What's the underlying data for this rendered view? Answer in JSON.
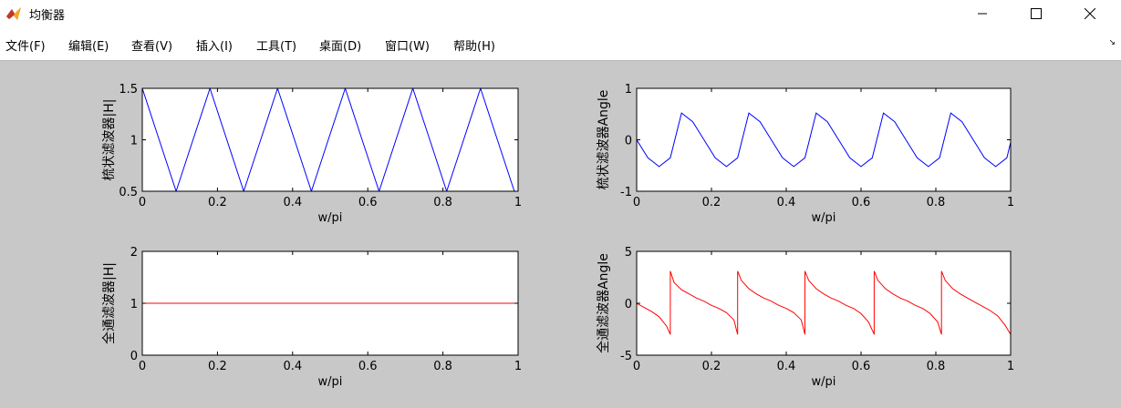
{
  "window": {
    "title": "均衡器",
    "icon": "matlab-icon",
    "controls": [
      "minimize-icon",
      "maximize-icon",
      "close-icon"
    ]
  },
  "menu": {
    "items": [
      "文件(F)",
      "编辑(E)",
      "查看(V)",
      "插入(I)",
      "工具(T)",
      "桌面(D)",
      "窗口(W)",
      "帮助(H)"
    ],
    "overflow_icon": "toolbar-arrow-icon"
  },
  "colors": {
    "blue_line": "#0000ff",
    "red_line": "#ff0000",
    "figure_bg": "#c8c8c8"
  },
  "chart_data": [
    {
      "type": "line",
      "title": "",
      "xlabel": "w/pi",
      "ylabel": "梳状滤波器|H|",
      "xlim": [
        0,
        1
      ],
      "ylim": [
        0.5,
        1.5
      ],
      "x_ticks": [
        "0",
        "0.2",
        "0.4",
        "0.6",
        "0.8",
        "1"
      ],
      "y_ticks": [
        "0.5",
        "1",
        "1.5"
      ],
      "series": [
        {
          "color": "#0000ff",
          "x": [
            0,
            0.045,
            0.09,
            0.135,
            0.18,
            0.225,
            0.27,
            0.315,
            0.36,
            0.405,
            0.45,
            0.495,
            0.54,
            0.585,
            0.63,
            0.675,
            0.72,
            0.765,
            0.81,
            0.855,
            0.9,
            0.945,
            0.99,
            1.0
          ],
          "y": [
            1.5,
            1.0,
            0.5,
            1.0,
            1.5,
            1.0,
            0.5,
            1.0,
            1.5,
            1.0,
            0.5,
            1.0,
            1.5,
            1.0,
            0.5,
            1.0,
            1.5,
            1.0,
            0.5,
            1.0,
            1.5,
            1.0,
            0.5,
            0.5
          ]
        }
      ]
    },
    {
      "type": "line",
      "title": "",
      "xlabel": "w/pi",
      "ylabel": "梳状滤波器Angle",
      "xlim": [
        0,
        1
      ],
      "ylim": [
        -1,
        1
      ],
      "x_ticks": [
        "0",
        "0.2",
        "0.4",
        "0.6",
        "0.8",
        "1"
      ],
      "y_ticks": [
        "-1",
        "0",
        "1"
      ],
      "series": [
        {
          "color": "#0000ff",
          "x": [
            0,
            0.03,
            0.06,
            0.09,
            0.12,
            0.15,
            0.18,
            0.21,
            0.24,
            0.27,
            0.3,
            0.33,
            0.36,
            0.39,
            0.42,
            0.45,
            0.48,
            0.51,
            0.54,
            0.57,
            0.6,
            0.63,
            0.66,
            0.69,
            0.72,
            0.75,
            0.78,
            0.81,
            0.84,
            0.87,
            0.9,
            0.93,
            0.96,
            0.99,
            1.0
          ],
          "y": [
            0,
            -0.35,
            -0.52,
            -0.35,
            0.52,
            0.35,
            0,
            -0.35,
            -0.52,
            -0.35,
            0.52,
            0.35,
            0,
            -0.35,
            -0.52,
            -0.35,
            0.52,
            0.35,
            0,
            -0.35,
            -0.52,
            -0.35,
            0.52,
            0.35,
            0,
            -0.35,
            -0.52,
            -0.35,
            0.52,
            0.35,
            0,
            -0.35,
            -0.52,
            -0.35,
            -0.05
          ]
        }
      ]
    },
    {
      "type": "line",
      "title": "",
      "xlabel": "w/pi",
      "ylabel": "全通滤波器|H|",
      "xlim": [
        0,
        1
      ],
      "ylim": [
        0,
        2
      ],
      "x_ticks": [
        "0",
        "0.2",
        "0.4",
        "0.6",
        "0.8",
        "1"
      ],
      "y_ticks": [
        "0",
        "1",
        "2"
      ],
      "series": [
        {
          "color": "#ff0000",
          "x": [
            0,
            0.27,
            0.45,
            0.81,
            1.0
          ],
          "y": [
            1,
            1,
            1,
            1,
            1
          ]
        }
      ]
    },
    {
      "type": "line",
      "title": "",
      "xlabel": "w/pi",
      "ylabel": "全通滤波器Angle",
      "xlim": [
        0,
        1
      ],
      "ylim": [
        -5,
        5
      ],
      "x_ticks": [
        "0",
        "0.2",
        "0.4",
        "0.6",
        "0.8",
        "1"
      ],
      "y_ticks": [
        "-5",
        "0",
        "5"
      ],
      "series": [
        {
          "color": "#ff0000",
          "x": [
            0,
            0.02,
            0.04,
            0.06,
            0.08,
            0.09,
            0.09,
            0.1,
            0.12,
            0.14,
            0.16,
            0.18,
            0.2,
            0.22,
            0.24,
            0.26,
            0.27,
            0.27,
            0.28,
            0.3,
            0.32,
            0.34,
            0.36,
            0.38,
            0.4,
            0.42,
            0.44,
            0.45,
            0.45,
            0.46,
            0.48,
            0.5,
            0.52,
            0.54,
            0.56,
            0.58,
            0.6,
            0.62,
            0.635,
            0.635,
            0.645,
            0.665,
            0.685,
            0.705,
            0.725,
            0.745,
            0.765,
            0.785,
            0.805,
            0.815,
            0.815,
            0.825,
            0.845,
            0.865,
            0.885,
            0.905,
            0.925,
            0.945,
            0.965,
            0.985,
            1.0
          ],
          "y": [
            0,
            -0.4,
            -0.8,
            -1.3,
            -2.2,
            -3.0,
            3.1,
            2.0,
            1.3,
            0.9,
            0.5,
            0.2,
            -0.2,
            -0.5,
            -0.9,
            -1.6,
            -3.0,
            3.1,
            2.2,
            1.4,
            0.9,
            0.5,
            0.2,
            -0.2,
            -0.5,
            -0.9,
            -1.6,
            -3.0,
            3.1,
            2.2,
            1.4,
            0.9,
            0.5,
            0.2,
            -0.2,
            -0.5,
            -1.0,
            -1.8,
            -3.0,
            3.1,
            2.2,
            1.4,
            0.9,
            0.5,
            0.2,
            -0.2,
            -0.5,
            -1.0,
            -1.8,
            -3.0,
            3.1,
            2.2,
            1.4,
            0.9,
            0.5,
            0.1,
            -0.3,
            -0.7,
            -1.2,
            -2.1,
            -3.0
          ]
        }
      ]
    }
  ]
}
